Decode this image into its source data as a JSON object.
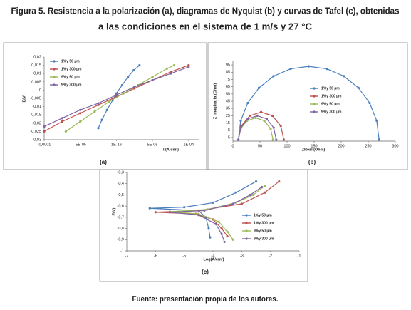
{
  "title_lines": [
    "Figura 5. Resistencia a la polarización (a), diagramas de Nyquist (b) y curvas de Tafel (c), obtenidas",
    "a las condiciones en el sistema de 1 m/s y 27 °C"
  ],
  "source": "Fuente: presentación propia de los autores.",
  "chart_data": [
    {
      "type": "line",
      "panel_label": "(a)",
      "xlabel": "I (A/cm²)",
      "ylabel": "E(V)",
      "legend": "upper-left",
      "xlim": [
        -0.0001,
        0.000115
      ],
      "ylim": [
        -0.03,
        0.02
      ],
      "xticks": [
        {
          "value": -0.0001,
          "label": "-0,0001"
        },
        {
          "value": -5e-05,
          "label": "-5E-05"
        },
        {
          "value": 1e-19,
          "label": "1E-19"
        },
        {
          "value": 5e-05,
          "label": "5E-05"
        },
        {
          "value": 0.0001,
          "label": "1E-04"
        }
      ],
      "yticks": [
        {
          "value": -0.03,
          "label": "-0,03"
        },
        {
          "value": -0.025,
          "label": "-0,025"
        },
        {
          "value": -0.02,
          "label": "-0,02"
        },
        {
          "value": -0.015,
          "label": "-0,015"
        },
        {
          "value": -0.01,
          "label": "-0,01"
        },
        {
          "value": -0.005,
          "label": "-0,005"
        },
        0,
        {
          "value": 0.005,
          "label": "0,005"
        },
        {
          "value": 0.01,
          "label": "0,01"
        },
        {
          "value": 0.015,
          "label": "0,015"
        },
        {
          "value": 0.02,
          "label": "0,02"
        }
      ],
      "series": [
        {
          "name": "1%y 50 µm",
          "color": "#4a7ebb",
          "x": [
            -2.5e-05,
            -2e-05,
            -1.3e-05,
            -5e-06,
            0,
            8e-06,
            1.6e-05,
            2.4e-05,
            3.2e-05
          ],
          "values": [
            -0.023,
            -0.018,
            -0.012,
            -0.006,
            -0.002,
            0.003,
            0.008,
            0.012,
            0.015
          ]
        },
        {
          "name": "1%y 300 µm",
          "color": "#c0504d",
          "x": [
            -0.0001,
            -7.5e-05,
            -5e-05,
            -2.5e-05,
            0,
            2.5e-05,
            5e-05,
            7.5e-05,
            0.0001
          ],
          "values": [
            -0.025,
            -0.019,
            -0.014,
            -0.009,
            -0.004,
            0.001,
            0.006,
            0.011,
            0.015
          ]
        },
        {
          "name": "9%y 50 µm",
          "color": "#9bbb59",
          "x": [
            -7e-05,
            -5e-05,
            -3e-05,
            -1e-05,
            1e-05,
            3e-05,
            5e-05,
            7e-05,
            8e-05
          ],
          "values": [
            -0.025,
            -0.019,
            -0.013,
            -0.007,
            -0.002,
            0.003,
            0.008,
            0.013,
            0.015
          ]
        },
        {
          "name": "9%y 300 µm",
          "color": "#8064a2",
          "x": [
            -0.0001,
            -7.5e-05,
            -5e-05,
            -2.5e-05,
            0,
            2.5e-05,
            5e-05,
            7.5e-05,
            0.0001
          ],
          "values": [
            -0.022,
            -0.017,
            -0.012,
            -0.008,
            -0.003,
            0.002,
            0.006,
            0.01,
            0.014
          ]
        }
      ]
    },
    {
      "type": "line",
      "panel_label": "(b)",
      "xlabel": "ZReal (Ohm)",
      "ylabel": "Z Imaginaria (Ohm)",
      "legend": "center-right",
      "xlim": [
        0,
        300
      ],
      "ylim": [
        -10,
        100
      ],
      "xticks": [
        0,
        50,
        100,
        150,
        200,
        250,
        300
      ],
      "yticks": [
        -5,
        5,
        15,
        25,
        35,
        45,
        55,
        65,
        75,
        85,
        95
      ],
      "series": [
        {
          "name": "1%y 50 µm",
          "color": "#4a7ebb",
          "x": [
            10,
            14.4,
            27.4,
            48.1,
            75,
            106.4,
            140,
            173.6,
            205,
            231.9,
            252.6,
            265.6,
            270
          ],
          "values": [
            -8,
            18.1,
            42.5,
            63.4,
            79.5,
            89.6,
            93,
            89.6,
            79.5,
            63.4,
            42.5,
            18.1,
            -8
          ]
        },
        {
          "name": "1%y 300 µm",
          "color": "#c0504d",
          "x": [
            10,
            15.6,
            31,
            52,
            73,
            88.4,
            94
          ],
          "values": [
            -8,
            11,
            24.9,
            30,
            24.9,
            11,
            -8
          ]
        },
        {
          "name": "9%y 50 µm",
          "color": "#9bbb59",
          "x": [
            10,
            14.3,
            26,
            42,
            58,
            69.7,
            74
          ],
          "values": [
            -8,
            7,
            18,
            22,
            18,
            7,
            -8
          ]
        },
        {
          "name": "9%y 300 µm",
          "color": "#8064a2",
          "x": [
            10,
            14.7,
            27.5,
            45,
            62.5,
            75.3,
            80
          ],
          "values": [
            -8,
            8.5,
            20.6,
            25,
            20.6,
            8.5,
            -8
          ]
        }
      ]
    },
    {
      "type": "line",
      "panel_label": "(c)",
      "xlabel": "Log(A/cm²)",
      "ylabel": "E(V)",
      "legend": "lower-right",
      "xlim": [
        -7,
        -1
      ],
      "ylim": [
        -1,
        -0.3
      ],
      "xticks": [
        -7,
        -6,
        -5,
        -4,
        -3,
        -2,
        -1
      ],
      "yticks": [
        -1,
        {
          "value": -0.9,
          "label": "-0,9"
        },
        {
          "value": -0.8,
          "label": "-0,8"
        },
        {
          "value": -0.7,
          "label": "-0,7"
        },
        {
          "value": -0.6,
          "label": "-0,6"
        },
        {
          "value": -0.5,
          "label": "-0,5"
        },
        {
          "value": -0.4,
          "label": "-0,4"
        },
        {
          "value": -0.3,
          "label": "-0,3"
        }
      ],
      "series": [
        {
          "name": "1%y 50 µm",
          "color": "#4a7ebb",
          "x": [
            -4.1,
            -4.15,
            -4.25,
            -4.5,
            -6.2,
            -5,
            -4,
            -3.2,
            -2.5
          ],
          "values": [
            -0.88,
            -0.8,
            -0.7,
            -0.64,
            -0.62,
            -0.61,
            -0.57,
            -0.48,
            -0.38
          ]
        },
        {
          "name": "1%y 300 µm",
          "color": "#c0504d",
          "x": [
            -3.5,
            -3.7,
            -4,
            -4.6,
            -6,
            -4.5,
            -3,
            -2.2,
            -1.7
          ],
          "values": [
            -0.87,
            -0.8,
            -0.72,
            -0.67,
            -0.655,
            -0.64,
            -0.58,
            -0.48,
            -0.38
          ]
        },
        {
          "name": "9%y 50 µm",
          "color": "#9bbb59",
          "x": [
            -3.3,
            -3.5,
            -3.8,
            -4.5,
            -5.5,
            -4.2,
            -3.2,
            -2.6,
            -2.2
          ],
          "values": [
            -0.9,
            -0.83,
            -0.74,
            -0.67,
            -0.65,
            -0.63,
            -0.57,
            -0.5,
            -0.42
          ]
        },
        {
          "name": "9%y 300 µm",
          "color": "#8064a2",
          "x": [
            -3.6,
            -3.7,
            -3.9,
            -4.5,
            -5.5,
            -4.3,
            -3.3,
            -2.7,
            -2.3
          ],
          "values": [
            -0.92,
            -0.85,
            -0.76,
            -0.68,
            -0.655,
            -0.64,
            -0.58,
            -0.5,
            -0.43
          ]
        }
      ]
    }
  ]
}
